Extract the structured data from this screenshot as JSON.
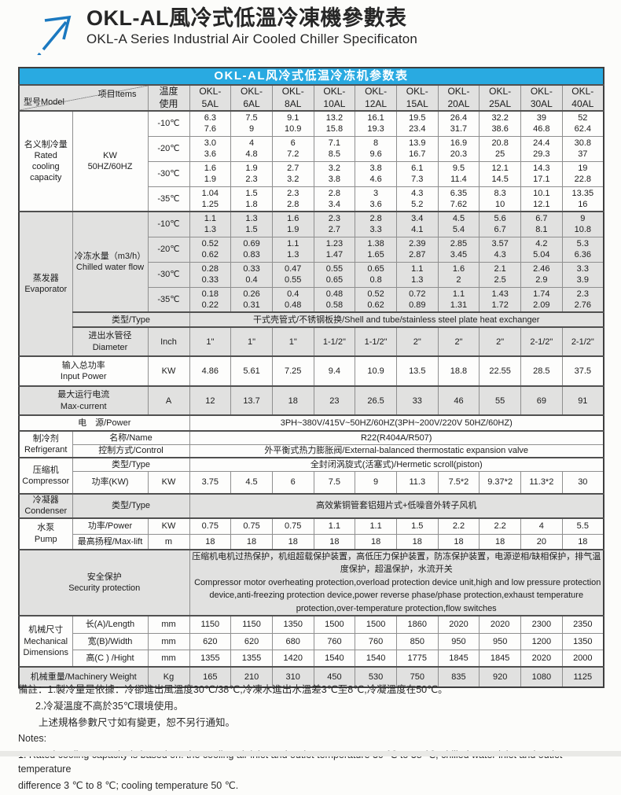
{
  "header": {
    "title_zh": "OKL-AL風冷式低溫冷凍機參數表",
    "title_en": "OKL-A Series Industrial Air Cooled Chiller Specificaton"
  },
  "table": {
    "caption": "OKL-AL风冷式低温冷冻机参数表",
    "corner": {
      "model": "型号Model",
      "items": "项目Items"
    },
    "temp_header_lines": [
      "温度",
      "使用"
    ],
    "models": [
      [
        "OKL-",
        "5AL"
      ],
      [
        "OKL-",
        "6AL"
      ],
      [
        "OKL-",
        "8AL"
      ],
      [
        "OKL-",
        "10AL"
      ],
      [
        "OKL-",
        "12AL"
      ],
      [
        "OKL-",
        "15AL"
      ],
      [
        "OKL-",
        "20AL"
      ],
      [
        "OKL-",
        "25AL"
      ],
      [
        "OKL-",
        "30AL"
      ],
      [
        "OKL-",
        "40AL"
      ]
    ],
    "cooling": {
      "label_lines": [
        "名义制冷量",
        "Rated",
        "cooling",
        "capacity"
      ],
      "unit_lines": [
        "KW",
        "50HZ/60HZ"
      ],
      "rows": [
        {
          "temp": "-10℃",
          "values": [
            [
              "6.3",
              "7.6"
            ],
            [
              "7.5",
              "9"
            ],
            [
              "9.1",
              "10.9"
            ],
            [
              "13.2",
              "15.8"
            ],
            [
              "16.1",
              "19.3"
            ],
            [
              "19.5",
              "23.4"
            ],
            [
              "26.4",
              "31.7"
            ],
            [
              "32.2",
              "38.6"
            ],
            [
              "39",
              "46.8"
            ],
            [
              "52",
              "62.4"
            ]
          ]
        },
        {
          "temp": "-20℃",
          "values": [
            [
              "3.0",
              "3.6"
            ],
            [
              "4",
              "4.8"
            ],
            [
              "6",
              "7.2"
            ],
            [
              "7.1",
              "8.5"
            ],
            [
              "8",
              "9.6"
            ],
            [
              "13.9",
              "16.7"
            ],
            [
              "16.9",
              "20.3"
            ],
            [
              "20.8",
              "25"
            ],
            [
              "24.4",
              "29.3"
            ],
            [
              "30.8",
              "37"
            ]
          ]
        },
        {
          "temp": "-30℃",
          "values": [
            [
              "1.6",
              "1.9"
            ],
            [
              "1.9",
              "2.3"
            ],
            [
              "2.7",
              "3.2"
            ],
            [
              "3.2",
              "3.8"
            ],
            [
              "3.8",
              "4.6"
            ],
            [
              "6.1",
              "7.3"
            ],
            [
              "9.5",
              "11.4"
            ],
            [
              "12.1",
              "14.5"
            ],
            [
              "14.3",
              "17.1"
            ],
            [
              "19",
              "22.8"
            ]
          ]
        },
        {
          "temp": "-35℃",
          "values": [
            [
              "1.04",
              "1.25"
            ],
            [
              "1.5",
              "1.8"
            ],
            [
              "2.3",
              "2.8"
            ],
            [
              "2.8",
              "3.4"
            ],
            [
              "3",
              "3.6"
            ],
            [
              "4.3",
              "5.2"
            ],
            [
              "6.35",
              "7.62"
            ],
            [
              "8.3",
              "10"
            ],
            [
              "10.1",
              "12.1"
            ],
            [
              "13.35",
              "16"
            ]
          ]
        }
      ]
    },
    "evaporator": {
      "label_lines": [
        "蒸发器",
        "Evaporator"
      ],
      "flow_label_lines": [
        "冷冻水量（m3/h）",
        "Chilled water flow"
      ],
      "flow_rows": [
        {
          "temp": "-10℃",
          "values": [
            [
              "1.1",
              "1.3"
            ],
            [
              "1.3",
              "1.5"
            ],
            [
              "1.6",
              "1.9"
            ],
            [
              "2.3",
              "2.7"
            ],
            [
              "2.8",
              "3.3"
            ],
            [
              "3.4",
              "4.1"
            ],
            [
              "4.5",
              "5.4"
            ],
            [
              "5.6",
              "6.7"
            ],
            [
              "6.7",
              "8.1"
            ],
            [
              "9",
              "10.8"
            ]
          ]
        },
        {
          "temp": "-20℃",
          "values": [
            [
              "0.52",
              "0.62"
            ],
            [
              "0.69",
              "0.83"
            ],
            [
              "1.1",
              "1.3"
            ],
            [
              "1.23",
              "1.47"
            ],
            [
              "1.38",
              "1.65"
            ],
            [
              "2.39",
              "2.87"
            ],
            [
              "2.85",
              "3.45"
            ],
            [
              "3.57",
              "4.3"
            ],
            [
              "4.2",
              "5.04"
            ],
            [
              "5.3",
              "6.36"
            ]
          ]
        },
        {
          "temp": "-30℃",
          "values": [
            [
              "0.28",
              "0.33"
            ],
            [
              "0.33",
              "0.4"
            ],
            [
              "0.47",
              "0.55"
            ],
            [
              "0.55",
              "0.65"
            ],
            [
              "0.65",
              "0.8"
            ],
            [
              "1.1",
              "1.3"
            ],
            [
              "1.6",
              "2"
            ],
            [
              "2.1",
              "2.5"
            ],
            [
              "2.46",
              "2.9"
            ],
            [
              "3.3",
              "3.9"
            ]
          ]
        },
        {
          "temp": "-35℃",
          "values": [
            [
              "0.18",
              "0.22"
            ],
            [
              "0.26",
              "0.31"
            ],
            [
              "0.4",
              "0.48"
            ],
            [
              "0.48",
              "0.58"
            ],
            [
              "0.52",
              "0.62"
            ],
            [
              "0.72",
              "0.89"
            ],
            [
              "1.1",
              "1.31"
            ],
            [
              "1.43",
              "1.72"
            ],
            [
              "1.74",
              "2.09"
            ],
            [
              "2.3",
              "2.76"
            ]
          ]
        }
      ],
      "type_label": "类型/Type",
      "type_value": "干式壳管式/不锈钢板换/Shell and tube/stainless steel plate heat exchanger",
      "diameter_label_lines": [
        "进出水管径",
        "Diameter"
      ],
      "diameter_unit": "Inch",
      "diameter_values": [
        "1\"",
        "1\"",
        "1\"",
        "1-1/2\"",
        "1-1/2\"",
        "2\"",
        "2\"",
        "2\"",
        "2-1/2\"",
        "2-1/2\""
      ]
    },
    "input_power": {
      "label_lines": [
        "输入总功率",
        "Input Power"
      ],
      "unit": "KW",
      "values": [
        "4.86",
        "5.61",
        "7.25",
        "9.4",
        "10.9",
        "13.5",
        "18.8",
        "22.55",
        "28.5",
        "37.5"
      ]
    },
    "max_current": {
      "label_lines": [
        "最大运行电流",
        "Max-current"
      ],
      "unit": "A",
      "values": [
        "12",
        "13.7",
        "18",
        "23",
        "26.5",
        "33",
        "46",
        "55",
        "69",
        "91"
      ]
    },
    "power": {
      "label": "电　源/Power",
      "value": "3PH~380V/415V~50HZ/60HZ(3PH~200V/220V  50HZ/60HZ)"
    },
    "refrigerant": {
      "label_lines": [
        "制冷剂",
        "Refrigerant"
      ],
      "name_label": "名称/Name",
      "name_value": "R22(R404A/R507)",
      "control_label": "控制方式/Control",
      "control_value": "外平衡式热力膨胀阀/External-balanced thermostatic expansion valve"
    },
    "compressor": {
      "label_lines": [
        "压缩机",
        "Compressor"
      ],
      "type_label": "类型/Type",
      "type_value": "全封闭涡旋式(活塞式)/Hermetic scroll(piston)",
      "power_label": "功率(KW)",
      "power_unit": "KW",
      "power_values": [
        "3.75",
        "4.5",
        "6",
        "7.5",
        "9",
        "11.3",
        "7.5*2",
        "9.37*2",
        "11.3*2",
        "30"
      ]
    },
    "condenser": {
      "label_lines": [
        "冷凝器",
        "Condenser"
      ],
      "type_label": "类型/Type",
      "type_value": "高效紫铜管套铝翅片式+低噪音外转子风机"
    },
    "pump": {
      "label_lines": [
        "水泵",
        "Pump"
      ],
      "power_label": "功率/Power",
      "power_unit": "KW",
      "power_values": [
        "0.75",
        "0.75",
        "0.75",
        "1.1",
        "1.1",
        "1.5",
        "2.2",
        "2.2",
        "4",
        "5.5"
      ],
      "lift_label": "最高扬程/Max-lift",
      "lift_unit": "m",
      "lift_values": [
        "18",
        "18",
        "18",
        "18",
        "18",
        "18",
        "18",
        "18",
        "20",
        "18"
      ]
    },
    "security": {
      "label_lines": [
        "安全保护",
        "Security protection"
      ],
      "text_zh": "压缩机电机过热保护，机组超载保护装置，高低压力保护装置，防冻保护装置，电源逆相/缺相保护，排气温度保护，超温保护，水流开关",
      "text_en": " Compressor motor overheating protection,overload protection device unit,high and low pressure protection device,anti-freezing protection device,power reverse phase/phase protection,exhaust temperature protection,over-temperature protection,flow switches"
    },
    "dimensions": {
      "label_lines": [
        "机械尺寸",
        "Mechanical",
        "Dimensions"
      ],
      "rows": [
        {
          "label": "长(A)/Length",
          "unit": "mm",
          "values": [
            "1150",
            "1150",
            "1350",
            "1500",
            "1500",
            "1860",
            "2020",
            "2020",
            "2300",
            "2350"
          ]
        },
        {
          "label": "宽(B)/Width",
          "unit": "mm",
          "values": [
            "620",
            "620",
            "680",
            "760",
            "760",
            "850",
            "950",
            "950",
            "1200",
            "1350"
          ]
        },
        {
          "label": "高(C ) /Hight",
          "unit": "mm",
          "values": [
            "1355",
            "1355",
            "1420",
            "1540",
            "1540",
            "1775",
            "1845",
            "1845",
            "2020",
            "2000"
          ]
        }
      ]
    },
    "weight": {
      "label": "机械重量/Machinery Weight",
      "unit": "Kg",
      "values": [
        "165",
        "210",
        "310",
        "450",
        "530",
        "750",
        "835",
        "920",
        "1080",
        "1125"
      ]
    }
  },
  "notes": {
    "zh1": "備註：1.製冷量是依據：冷卻進出風溫度30℃/38℃,冷凍水進出水溫差3℃至8℃,冷凝溫度在50℃。",
    "zh2": "2.冷凝溫度不高於35℃環境使用。",
    "zh3": "上述規格參數尺寸如有變更，恕不另行通知。",
    "en_title": "Notes:",
    "en1": "1. Rated cooling capacity is based on: the cooling air inlet and outlet temperature 30 ℃ to 38 ℃, chilled water inlet and outlet temperature",
    "en2": "difference 3 ℃ to 8 ℃; cooling temperature 50 ℃."
  },
  "colors": {
    "accent_blue": "#29aae1",
    "logo_blue": "#1b79c0",
    "row_gray": "#e1e1e0"
  }
}
